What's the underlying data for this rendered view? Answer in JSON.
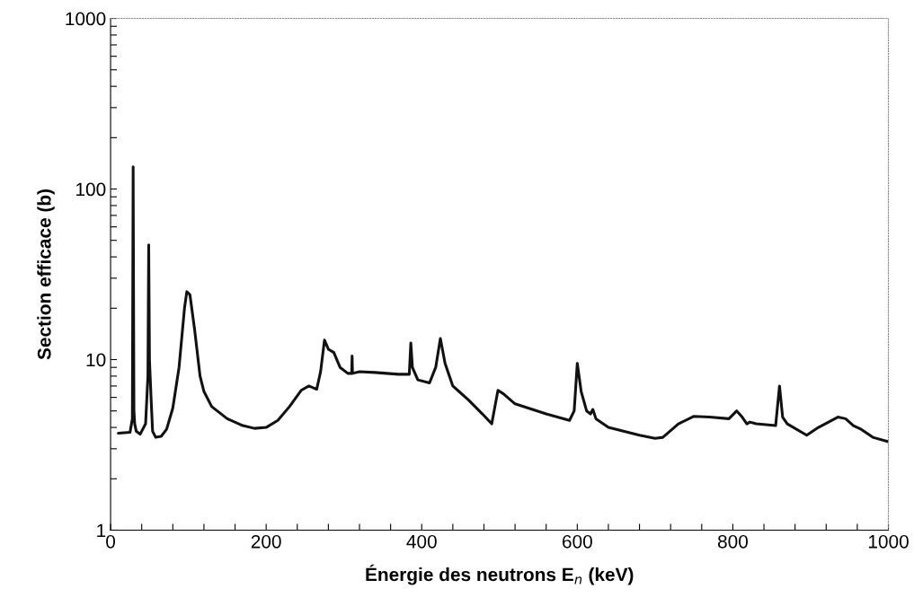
{
  "chart_data": {
    "type": "line",
    "xlabel": "Énergie des neutrons E$_{n}$ (keV)",
    "ylabel": "Section efficace (b)",
    "log": "y",
    "xlim": [
      0,
      1000
    ],
    "ylim": [
      1,
      1000
    ],
    "xticks": [
      0,
      {
        "value": 40,
        "label": null
      },
      {
        "value": 80,
        "label": null
      },
      {
        "value": 120,
        "label": null
      },
      {
        "value": 160,
        "label": null
      },
      200,
      {
        "value": 240,
        "label": null
      },
      {
        "value": 280,
        "label": null
      },
      {
        "value": 320,
        "label": null
      },
      {
        "value": 360,
        "label": null
      },
      400,
      {
        "value": 440,
        "label": null
      },
      {
        "value": 480,
        "label": null
      },
      {
        "value": 520,
        "label": null
      },
      {
        "value": 560,
        "label": null
      },
      600,
      {
        "value": 640,
        "label": null
      },
      {
        "value": 680,
        "label": null
      },
      {
        "value": 720,
        "label": null
      },
      {
        "value": 760,
        "label": null
      },
      800,
      {
        "value": 840,
        "label": null
      },
      {
        "value": 880,
        "label": null
      },
      {
        "value": 920,
        "label": null
      },
      {
        "value": 960,
        "label": null
      },
      1000
    ],
    "yticks": [
      1,
      {
        "value": 2,
        "label": null
      },
      {
        "value": 3,
        "label": null
      },
      {
        "value": 4,
        "label": null
      },
      {
        "value": 5,
        "label": null
      },
      {
        "value": 6,
        "label": null
      },
      {
        "value": 7,
        "label": null
      },
      {
        "value": 8,
        "label": null
      },
      {
        "value": 9,
        "label": null
      },
      10,
      {
        "value": 20,
        "label": null
      },
      {
        "value": 30,
        "label": null
      },
      {
        "value": 40,
        "label": null
      },
      {
        "value": 50,
        "label": null
      },
      {
        "value": 60,
        "label": null
      },
      {
        "value": 70,
        "label": null
      },
      {
        "value": 80,
        "label": null
      },
      {
        "value": 90,
        "label": null
      },
      100,
      {
        "value": 200,
        "label": null
      },
      {
        "value": 300,
        "label": null
      },
      {
        "value": 400,
        "label": null
      },
      {
        "value": 500,
        "label": null
      },
      {
        "value": 600,
        "label": null
      },
      {
        "value": 700,
        "label": null
      },
      {
        "value": 800,
        "label": null
      },
      {
        "value": 900,
        "label": null
      },
      1000
    ],
    "grid": false,
    "legend": false,
    "marker": "none",
    "line_style": "solid",
    "series": [
      {
        "color": "#111111",
        "x": [
          10,
          25,
          28,
          29,
          30,
          31,
          33,
          38,
          45,
          48,
          49,
          50,
          52,
          54,
          58,
          65,
          72,
          80,
          88,
          95,
          98,
          102,
          108,
          115,
          120,
          130,
          150,
          170,
          185,
          200,
          215,
          230,
          245,
          255,
          265,
          270,
          275,
          280,
          287,
          295,
          305,
          310,
          310.5,
          311,
          320,
          340,
          370,
          384,
          386,
          388,
          395,
          410,
          418,
          424,
          430,
          440,
          460,
          478,
          490,
          498,
          505,
          520,
          560,
          590,
          596,
          600,
          605,
          612,
          617,
          620,
          624,
          640,
          680,
          700,
          710,
          730,
          750,
          770,
          795,
          805,
          812,
          818,
          822,
          830,
          855,
          860,
          864,
          870,
          895,
          910,
          935,
          945,
          955,
          965,
          980,
          1000
        ],
        "values": [
          3.7,
          3.75,
          4.5,
          135,
          5,
          4.2,
          3.8,
          3.65,
          4.2,
          8,
          47,
          10,
          6,
          3.8,
          3.5,
          3.55,
          3.9,
          5.2,
          9,
          20,
          25,
          24,
          15,
          8,
          6.5,
          5.3,
          4.5,
          4.1,
          3.95,
          4.0,
          4.4,
          5.3,
          6.6,
          7.0,
          6.7,
          8.5,
          13,
          11.5,
          11,
          9,
          8.3,
          8.3,
          10.5,
          8.3,
          8.5,
          8.4,
          8.2,
          8.2,
          12.5,
          9,
          7.6,
          7.3,
          9,
          13.3,
          9.5,
          7,
          5.8,
          4.8,
          4.2,
          6.6,
          6.3,
          5.5,
          4.8,
          4.4,
          5,
          9.5,
          6.5,
          5,
          4.8,
          5.1,
          4.5,
          4.0,
          3.6,
          3.45,
          3.5,
          4.2,
          4.65,
          4.6,
          4.5,
          5.0,
          4.6,
          4.2,
          4.3,
          4.2,
          4.1,
          7.0,
          4.6,
          4.2,
          3.6,
          4.0,
          4.6,
          4.5,
          4.1,
          3.9,
          3.5,
          3.3
        ]
      }
    ]
  }
}
